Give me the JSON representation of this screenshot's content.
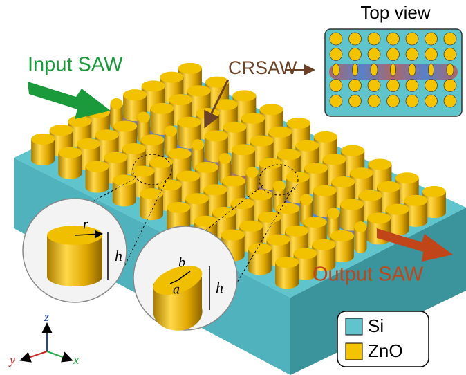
{
  "top_view": {
    "title": "Top view"
  },
  "labels": {
    "input": "Input SAW",
    "crsaw": "CRSAW",
    "output": "Output SAW"
  },
  "inset_circular": {
    "radius": "r",
    "height": "h"
  },
  "inset_elliptical": {
    "semi_b": "b",
    "semi_a": "a",
    "height": "h"
  },
  "axes": {
    "z": "z",
    "y": "y",
    "x": "x"
  },
  "legend": {
    "items": [
      "Si",
      "ZnO"
    ]
  }
}
